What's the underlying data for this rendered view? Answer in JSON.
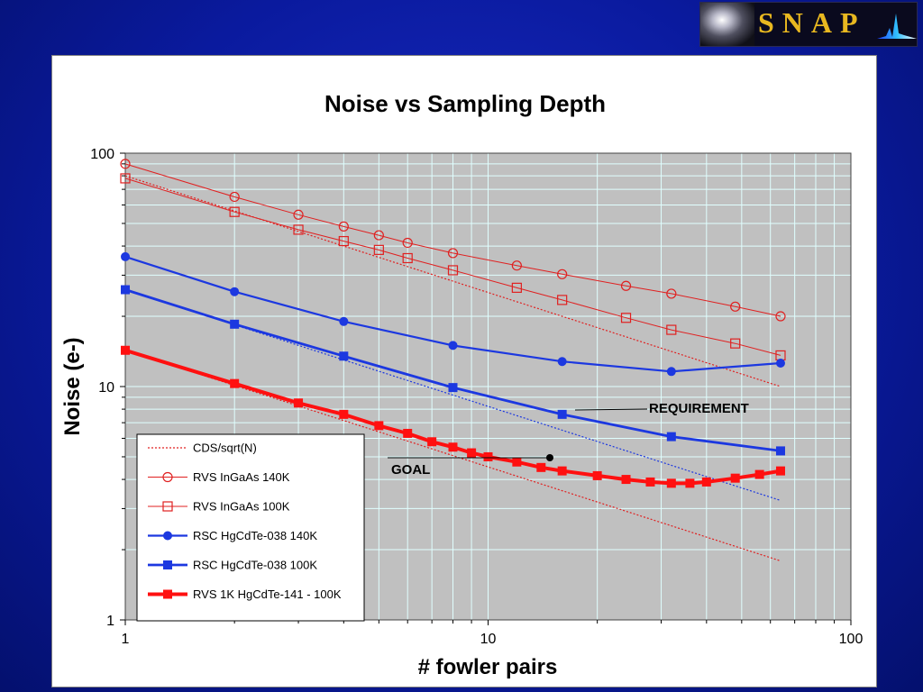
{
  "logo": {
    "text": "SNAP"
  },
  "chart_data": {
    "type": "line",
    "title": "Noise vs Sampling Depth",
    "xlabel": "# fowler pairs",
    "ylabel": "Noise (e-)",
    "x_scale": "log",
    "y_scale": "log",
    "xlim": [
      1,
      100
    ],
    "ylim": [
      1,
      100
    ],
    "x_ticks": [
      "1",
      "10",
      "100"
    ],
    "y_ticks": [
      "1",
      "10",
      "100"
    ],
    "grid": true,
    "legend_position": "bottom-left",
    "annotations": {
      "requirement": "REQUIREMENT",
      "goal": "GOAL"
    },
    "series": [
      {
        "name": "CDS/sqrt(N)",
        "color": "#e02020",
        "style": "dotted",
        "marker": "none",
        "x": [
          1,
          64
        ],
        "y": [
          80,
          10
        ]
      },
      {
        "name": "CDS/sqrt(N)",
        "color": "#1c38e0",
        "style": "dotted",
        "marker": "none",
        "legend": false,
        "x": [
          1,
          64
        ],
        "y": [
          26,
          3.25
        ]
      },
      {
        "name": "CDS/sqrt(N)",
        "color": "#e02020",
        "style": "dotted",
        "marker": "none",
        "legend": false,
        "x": [
          1,
          64
        ],
        "y": [
          14.3,
          1.79
        ]
      },
      {
        "name": "RVS InGaAs 140K",
        "color": "#e02020",
        "style": "thin",
        "marker": "circle-open",
        "x": [
          1,
          2,
          3,
          4,
          5,
          6,
          8,
          12,
          16,
          24,
          32,
          48,
          64
        ],
        "y": [
          90,
          65,
          54.5,
          48.5,
          44.5,
          41.3,
          37.3,
          33,
          30.3,
          27,
          25,
          22,
          20
        ]
      },
      {
        "name": "RVS InGaAs 100K",
        "color": "#e02020",
        "style": "thin",
        "marker": "square-open",
        "x": [
          1,
          2,
          3,
          4,
          5,
          6,
          8,
          12,
          16,
          24,
          32,
          48,
          64
        ],
        "y": [
          78,
          56,
          47,
          42,
          38.5,
          35.5,
          31.5,
          26.5,
          23.5,
          19.7,
          17.5,
          15.3,
          13.6
        ]
      },
      {
        "name": "RSC HgCdTe-038 140K",
        "color": "#1c38e0",
        "style": "medium",
        "marker": "circle-filled",
        "x": [
          1,
          2,
          4,
          8,
          16,
          32,
          64
        ],
        "y": [
          36,
          25.5,
          19,
          15,
          12.8,
          11.6,
          12.6
        ]
      },
      {
        "name": "RSC HgCdTe-038 100K",
        "color": "#1c38e0",
        "style": "thick",
        "marker": "square-filled",
        "x": [
          1,
          2,
          4,
          8,
          16,
          32,
          64
        ],
        "y": [
          26,
          18.5,
          13.5,
          9.9,
          7.6,
          6.1,
          5.3
        ]
      },
      {
        "name": "RVS 1K HgCdTe-141 - 100K",
        "color": "#ff1010",
        "style": "thickest",
        "marker": "square-filled",
        "x": [
          1,
          2,
          3,
          4,
          5,
          6,
          7,
          8,
          9,
          10,
          12,
          14,
          16,
          20,
          24,
          28,
          32,
          36,
          40,
          48,
          56,
          64
        ],
        "y": [
          14.3,
          10.3,
          8.5,
          7.6,
          6.8,
          6.3,
          5.8,
          5.5,
          5.2,
          5.0,
          4.75,
          4.5,
          4.35,
          4.15,
          4.0,
          3.9,
          3.85,
          3.85,
          3.9,
          4.05,
          4.2,
          4.35
        ]
      }
    ]
  }
}
